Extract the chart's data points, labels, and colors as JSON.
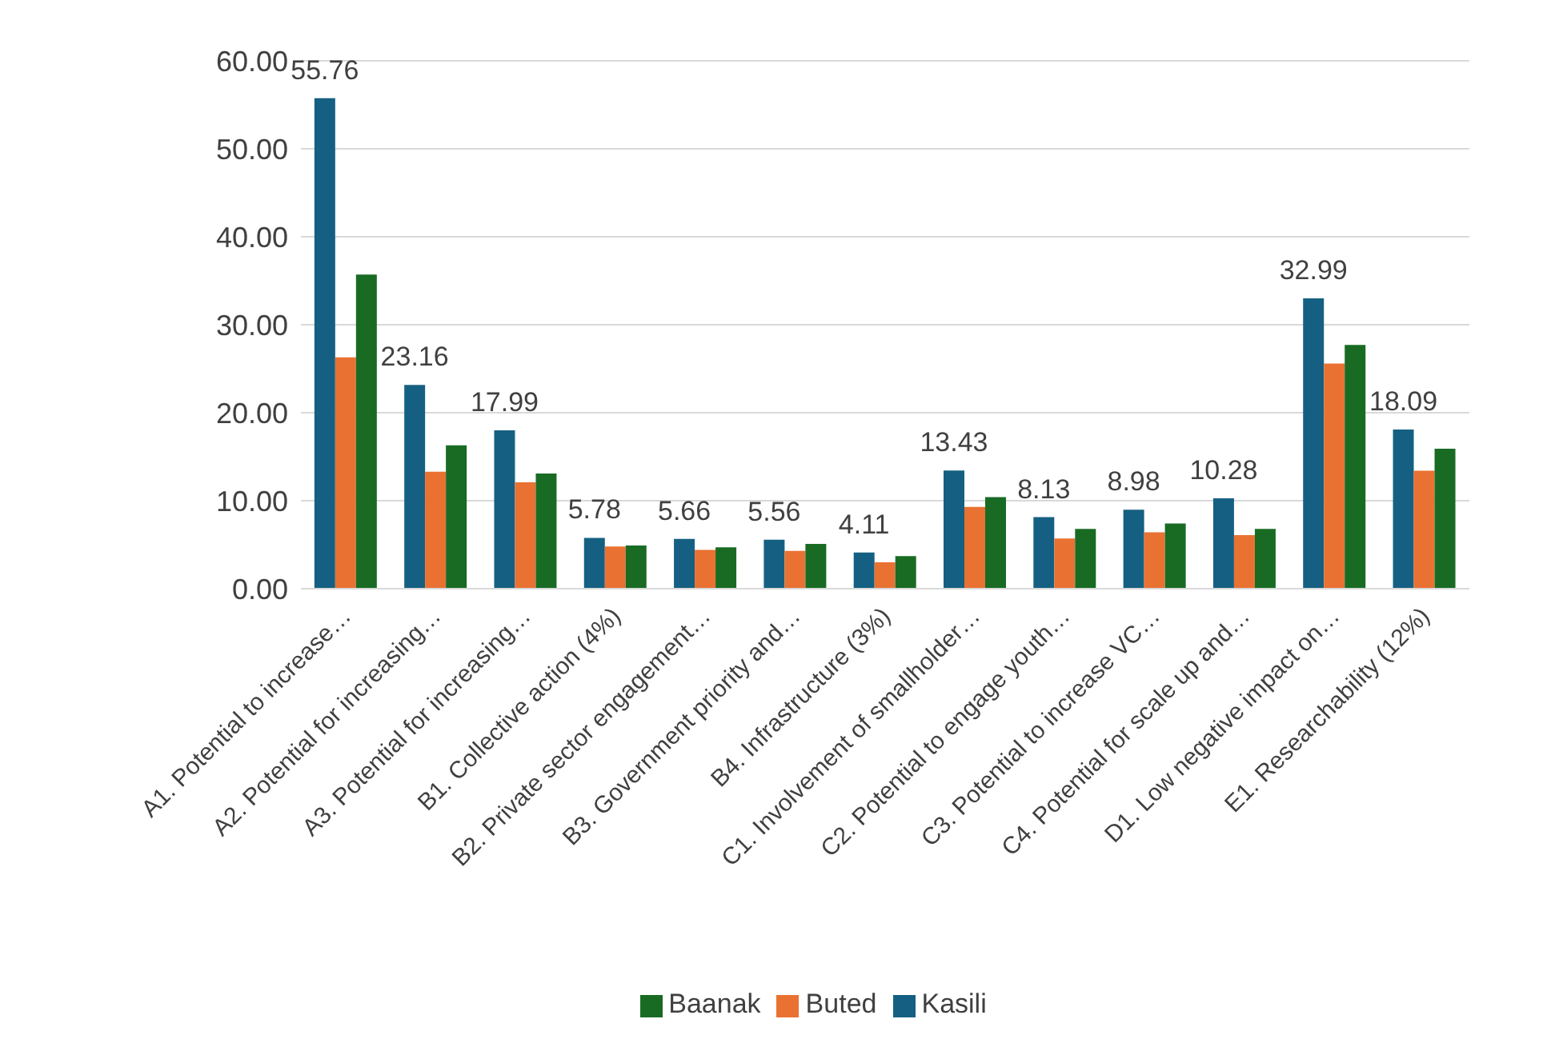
{
  "chart_data": {
    "type": "bar",
    "categories": [
      "A1. Potential to increase…",
      "A2. Potential for increasing…",
      "A3. Potential for increasing…",
      "B1. Collective action (4%)",
      "B2. Private sector engagement…",
      "B3. Government priority and…",
      "B4. Infrastructure (3%)",
      "C1. Involvement of smallholder…",
      "C2. Potential to engage youth…",
      "C3. Potential to increase VC…",
      "C4. Potential for scale up and…",
      "D1. Low negative impact on…",
      "E1. Researchability (12%)"
    ],
    "series": [
      {
        "name": "Kasili",
        "color": "#156082",
        "values": [
          55.76,
          23.16,
          17.99,
          5.78,
          5.66,
          5.56,
          4.11,
          13.43,
          8.13,
          8.98,
          10.28,
          32.99,
          18.09
        ],
        "value_labels": [
          "55.76",
          "23.16",
          "17.99",
          "5.78",
          "5.66",
          "5.56",
          "4.11",
          "13.43",
          "8.13",
          "8.98",
          "10.28",
          "32.99",
          "18.09"
        ]
      },
      {
        "name": "Buted",
        "color": "#e97132",
        "values": [
          26.3,
          13.3,
          12.1,
          4.8,
          4.4,
          4.3,
          3.0,
          9.3,
          5.7,
          6.4,
          6.1,
          25.6,
          13.4
        ]
      },
      {
        "name": "Baanak",
        "color": "#196b24",
        "values": [
          35.7,
          16.3,
          13.1,
          4.9,
          4.7,
          5.1,
          3.7,
          10.4,
          6.8,
          7.4,
          6.8,
          27.7,
          15.9
        ]
      }
    ],
    "ylim": [
      0,
      60
    ],
    "yticks": [
      {
        "value": 0,
        "label": "0.00"
      },
      {
        "value": 10,
        "label": "10.00"
      },
      {
        "value": 20,
        "label": "20.00"
      },
      {
        "value": 30,
        "label": "30.00"
      },
      {
        "value": 40,
        "label": "40.00"
      },
      {
        "value": 50,
        "label": "50.00"
      },
      {
        "value": 60,
        "label": "60.00"
      }
    ],
    "grid": "y",
    "legend": "bottom"
  }
}
